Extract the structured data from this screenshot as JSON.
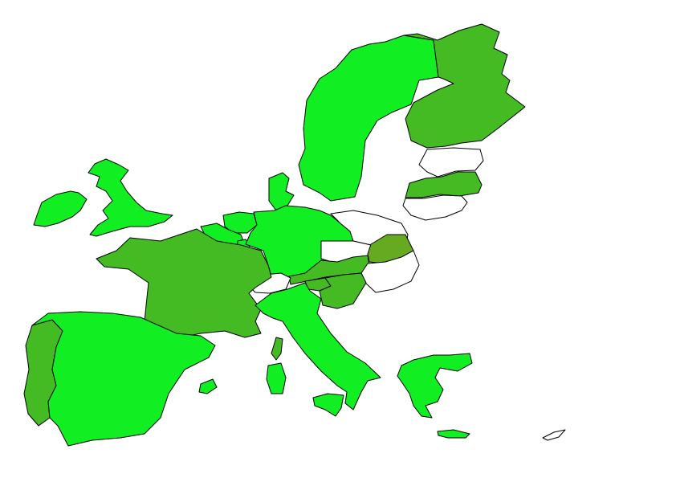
{
  "map": {
    "colors": {
      "bright": "#11ee22",
      "medium": "#44bb22",
      "olive": "#66aa22",
      "none": "#ffffff",
      "border": "#000000"
    },
    "regions": [
      {
        "id": "sweden",
        "fill": "bright"
      },
      {
        "id": "finland",
        "fill": "medium"
      },
      {
        "id": "estonia",
        "fill": "none"
      },
      {
        "id": "latvia",
        "fill": "medium"
      },
      {
        "id": "lithuania",
        "fill": "none"
      },
      {
        "id": "ireland",
        "fill": "bright"
      },
      {
        "id": "united-kingdom",
        "fill": "bright"
      },
      {
        "id": "denmark",
        "fill": "bright"
      },
      {
        "id": "netherlands",
        "fill": "bright"
      },
      {
        "id": "belgium",
        "fill": "bright"
      },
      {
        "id": "luxembourg",
        "fill": "bright"
      },
      {
        "id": "germany",
        "fill": "bright"
      },
      {
        "id": "poland",
        "fill": "none"
      },
      {
        "id": "czechia",
        "fill": "none"
      },
      {
        "id": "slovakia",
        "fill": "olive"
      },
      {
        "id": "austria",
        "fill": "medium"
      },
      {
        "id": "hungary",
        "fill": "none"
      },
      {
        "id": "slovenia",
        "fill": "medium"
      },
      {
        "id": "croatia",
        "fill": "medium"
      },
      {
        "id": "switzerland",
        "fill": "none"
      },
      {
        "id": "france",
        "fill": "medium"
      },
      {
        "id": "corsica",
        "fill": "medium"
      },
      {
        "id": "italy",
        "fill": "bright"
      },
      {
        "id": "sardinia",
        "fill": "bright"
      },
      {
        "id": "sicily",
        "fill": "bright"
      },
      {
        "id": "spain",
        "fill": "bright"
      },
      {
        "id": "portugal",
        "fill": "medium"
      },
      {
        "id": "balearic-islands",
        "fill": "bright"
      },
      {
        "id": "greece",
        "fill": "bright"
      },
      {
        "id": "crete",
        "fill": "bright"
      },
      {
        "id": "cyprus",
        "fill": "none"
      }
    ]
  }
}
